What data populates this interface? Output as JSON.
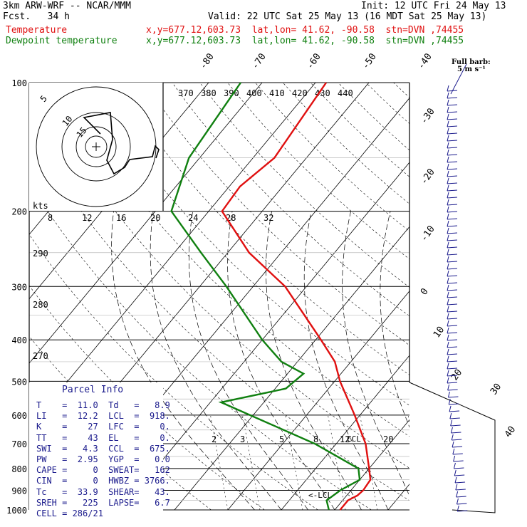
{
  "header": {
    "model": "3km ARW-WRF -- NCAR/MMM",
    "init": "Init: 12 UTC Fri 24 May 13",
    "fcst": "Fcst.   34 h",
    "valid": "Valid: 22 UTC Sat 25 May 13 (16 MDT Sat 25 May 13)",
    "temp_label": "Temperature",
    "dew_label": "Dewpoint temperature",
    "temp_loc": "x,y=677.12,603.73  lat,lon= 41.62, -90.58  stn=DVN ,74455",
    "dew_loc": "x,y=677.12,603.73  lat,lon= 41.62, -90.58  stn=DVN ,74455"
  },
  "barb_legend": {
    "line1": "Full barb:",
    "line2": "5 m s⁻¹"
  },
  "colors": {
    "temperature": "#e01010",
    "dewpoint": "#108010",
    "parcel_text": "#1a1a8c",
    "barbs": "#1a1a8c"
  },
  "parcel": {
    "title": "Parcel Info",
    "rows": [
      {
        "l": "T",
        "lv": "11.0",
        "r": "Td",
        "rv": "8.9"
      },
      {
        "l": "LI",
        "lv": "12.2",
        "r": "LCL",
        "rv": "918."
      },
      {
        "l": "K",
        "lv": "27",
        "r": "LFC",
        "rv": "0."
      },
      {
        "l": "TT",
        "lv": "43",
        "r": "EL",
        "rv": "0."
      },
      {
        "l": "SWI",
        "lv": "4.3",
        "r": "CCL",
        "rv": "675."
      },
      {
        "l": "PW",
        "lv": "2.95",
        "r": "YGP",
        "rv": "0.0"
      },
      {
        "l": "CAPE",
        "lv": "0",
        "r": "SWEAT",
        "rv": "162"
      },
      {
        "l": "CIN",
        "lv": "0",
        "r": "HWBZ",
        "rv": "3766."
      },
      {
        "l": "Tc",
        "lv": "33.9",
        "r": "SHEAR",
        "rv": "43."
      },
      {
        "l": "SREH",
        "lv": "225",
        "r": "LAPSE",
        "rv": "6.7"
      },
      {
        "l": "CELL",
        "lv": "286/21",
        "r": "",
        "rv": ""
      }
    ]
  },
  "chart_data": {
    "type": "line",
    "pressure_axis": [
      100,
      200,
      300,
      400,
      500,
      600,
      700,
      800,
      900,
      1000
    ],
    "isotherm_labels": [
      "-80",
      "-70",
      "-60",
      "-50",
      "-40",
      "-30",
      "-20",
      "-10",
      "0",
      "10",
      "20",
      "30",
      "40"
    ],
    "theta_labels": [
      "370",
      "380",
      "390",
      "400",
      "410",
      "420",
      "430",
      "440"
    ],
    "theta_low_labels": [
      "290",
      "280",
      "270"
    ],
    "mixing_ratio_labels": [
      "2",
      "3",
      "5",
      "8",
      "12",
      "20"
    ],
    "thetae_labels": [
      "8",
      "12",
      "16",
      "20",
      "24",
      "28",
      "32"
    ],
    "annotations": {
      "ccl": "CCL",
      "lcl": "LCL"
    },
    "hodograph": {
      "unit": "kts",
      "rings": [
        "5",
        "10",
        "15"
      ]
    },
    "series": [
      {
        "name": "Temperature",
        "points": [
          [
            100,
            -58
          ],
          [
            150,
            -56
          ],
          [
            175,
            -58
          ],
          [
            200,
            -57.5
          ],
          [
            250,
            -46
          ],
          [
            300,
            -34
          ],
          [
            400,
            -19
          ],
          [
            450,
            -13
          ],
          [
            500,
            -9
          ],
          [
            600,
            -1
          ],
          [
            700,
            5.5
          ],
          [
            800,
            10
          ],
          [
            850,
            12
          ],
          [
            900,
            12.3
          ],
          [
            925,
            12
          ],
          [
            950,
            11
          ],
          [
            1000,
            11
          ]
        ]
      },
      {
        "name": "Dewpoint temperature",
        "points": [
          [
            100,
            -74
          ],
          [
            150,
            -72
          ],
          [
            200,
            -67
          ],
          [
            250,
            -55
          ],
          [
            300,
            -45
          ],
          [
            400,
            -30
          ],
          [
            450,
            -23
          ],
          [
            480,
            -17
          ],
          [
            520,
            -18
          ],
          [
            560,
            -28
          ],
          [
            650,
            -12
          ],
          [
            700,
            -4
          ],
          [
            800,
            8
          ],
          [
            850,
            10
          ],
          [
            900,
            8
          ],
          [
            950,
            7
          ],
          [
            1000,
            8.9
          ]
        ]
      }
    ]
  }
}
